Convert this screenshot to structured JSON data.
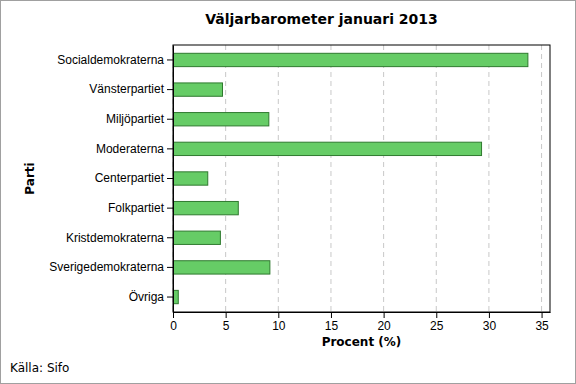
{
  "chart_data": {
    "type": "bar",
    "orientation": "horizontal",
    "title": "Väljarbarometer januari 2013",
    "x_label": "Procent (%)",
    "y_label": "Parti",
    "source": "Källa: Sifo",
    "categories": [
      "Socialdemokraterna",
      "Vänsterpartiet",
      "Miljöpartiet",
      "Moderaterna",
      "Centerpartiet",
      "Folkpartiet",
      "Kristdemokraterna",
      "Sverigedemokraterna",
      "Övriga"
    ],
    "values": [
      33.7,
      4.7,
      9.1,
      29.3,
      3.3,
      6.2,
      4.5,
      9.2,
      0.5
    ],
    "color": "#66cc66",
    "xlim": [
      0,
      35.8
    ],
    "xticks": [
      0,
      5,
      10,
      15,
      20,
      25,
      30,
      35
    ],
    "grid": true
  }
}
